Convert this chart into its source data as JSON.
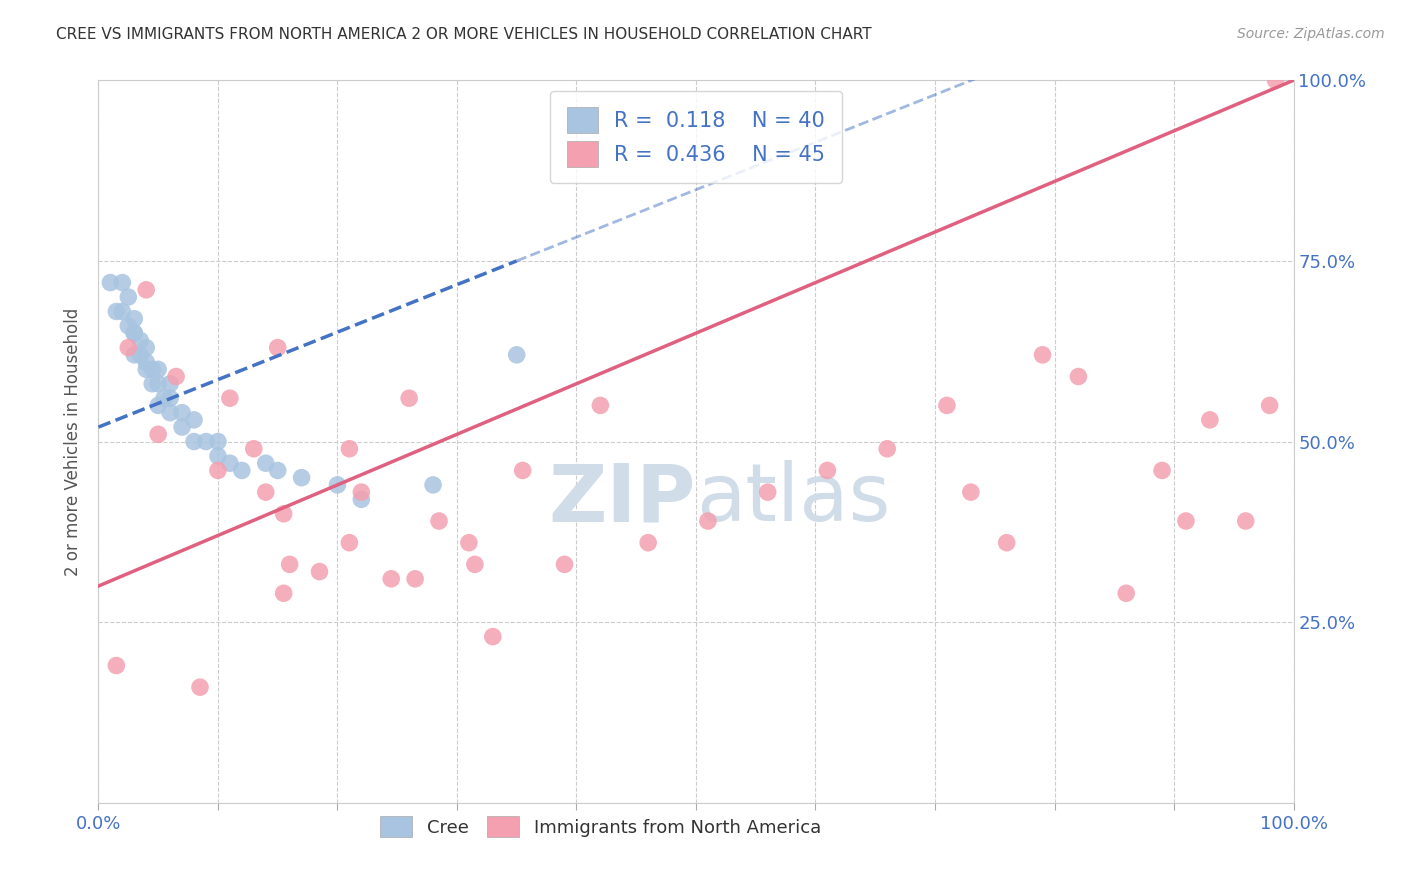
{
  "title": "CREE VS IMMIGRANTS FROM NORTH AMERICA 2 OR MORE VEHICLES IN HOUSEHOLD CORRELATION CHART",
  "source": "Source: ZipAtlas.com",
  "ylabel": "2 or more Vehicles in Household",
  "blue_R": 0.118,
  "blue_N": 40,
  "pink_R": 0.436,
  "pink_N": 45,
  "blue_color": "#a8c4e0",
  "pink_color": "#f4a0b0",
  "blue_line_color": "#4472C4",
  "pink_line_color": "#e06080",
  "legend_label_blue": "Cree",
  "legend_label_pink": "Immigrants from North America",
  "blue_scatter_x": [
    0.01,
    0.015,
    0.02,
    0.02,
    0.025,
    0.025,
    0.03,
    0.03,
    0.03,
    0.03,
    0.035,
    0.035,
    0.04,
    0.04,
    0.04,
    0.045,
    0.045,
    0.05,
    0.05,
    0.05,
    0.055,
    0.06,
    0.06,
    0.06,
    0.07,
    0.07,
    0.08,
    0.08,
    0.09,
    0.1,
    0.1,
    0.11,
    0.12,
    0.14,
    0.15,
    0.17,
    0.2,
    0.22,
    0.28,
    0.35
  ],
  "blue_scatter_y": [
    0.72,
    0.68,
    0.72,
    0.68,
    0.7,
    0.66,
    0.65,
    0.67,
    0.65,
    0.62,
    0.64,
    0.62,
    0.6,
    0.63,
    0.61,
    0.6,
    0.58,
    0.6,
    0.58,
    0.55,
    0.56,
    0.56,
    0.58,
    0.54,
    0.52,
    0.54,
    0.5,
    0.53,
    0.5,
    0.48,
    0.5,
    0.47,
    0.46,
    0.47,
    0.46,
    0.45,
    0.44,
    0.42,
    0.44,
    0.62
  ],
  "pink_scatter_x": [
    0.015,
    0.025,
    0.04,
    0.05,
    0.065,
    0.085,
    0.1,
    0.11,
    0.13,
    0.14,
    0.15,
    0.155,
    0.16,
    0.185,
    0.21,
    0.22,
    0.245,
    0.26,
    0.285,
    0.31,
    0.33,
    0.355,
    0.39,
    0.42,
    0.46,
    0.51,
    0.56,
    0.61,
    0.66,
    0.71,
    0.73,
    0.76,
    0.79,
    0.82,
    0.86,
    0.89,
    0.91,
    0.93,
    0.96,
    0.98,
    0.155,
    0.21,
    0.265,
    0.315,
    0.985
  ],
  "pink_scatter_y": [
    0.19,
    0.63,
    0.71,
    0.51,
    0.59,
    0.16,
    0.46,
    0.56,
    0.49,
    0.43,
    0.63,
    0.4,
    0.33,
    0.32,
    0.49,
    0.43,
    0.31,
    0.56,
    0.39,
    0.36,
    0.23,
    0.46,
    0.33,
    0.55,
    0.36,
    0.39,
    0.43,
    0.46,
    0.49,
    0.55,
    0.43,
    0.36,
    0.62,
    0.59,
    0.29,
    0.46,
    0.39,
    0.53,
    0.39,
    0.55,
    0.29,
    0.36,
    0.31,
    0.33,
    1.0
  ],
  "background_color": "#ffffff",
  "grid_color": "#cccccc",
  "title_color": "#333333",
  "source_color": "#999999",
  "tick_color": "#4472C4",
  "watermark_color": "#d0dde8"
}
